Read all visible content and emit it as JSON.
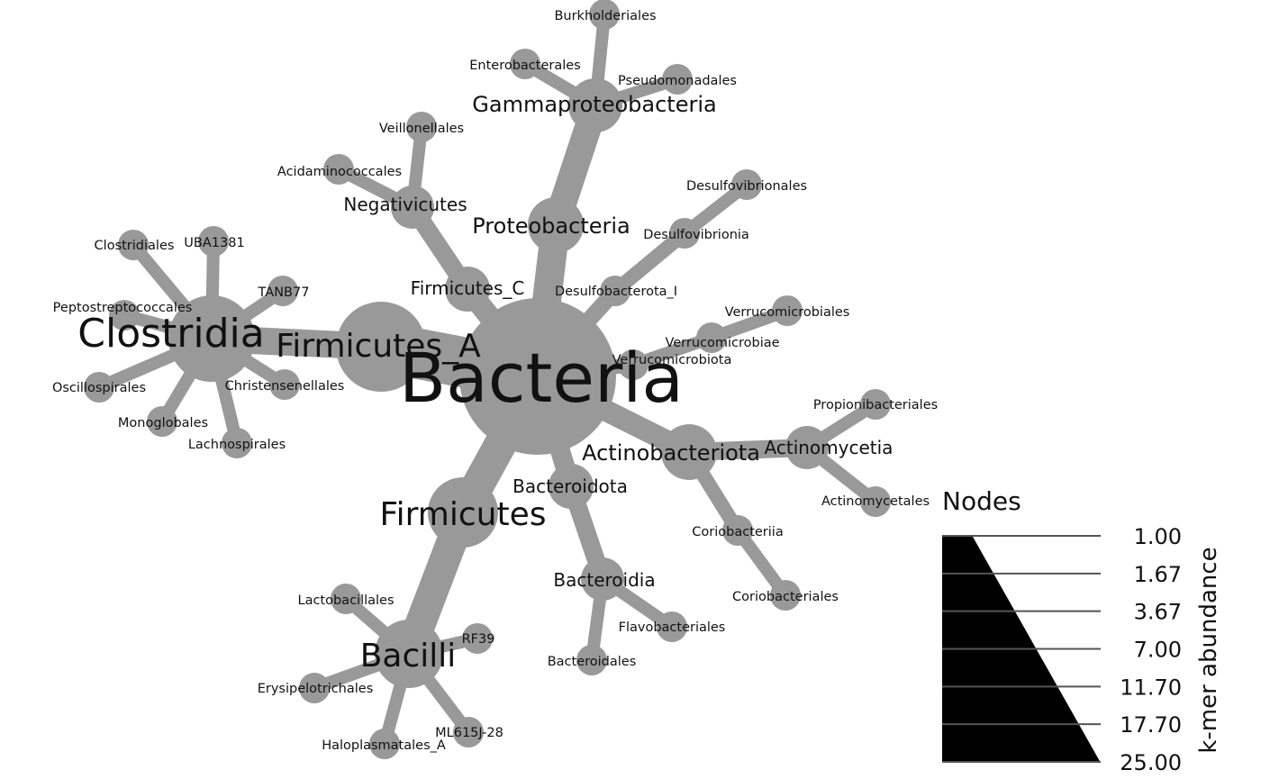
{
  "colors": {
    "node": "#999999",
    "edge": "#999999",
    "text": "#111111",
    "legend_fill": "#000000",
    "legend_tick": "#555555"
  },
  "tree": {
    "root": "Bacteria",
    "nodes": {
      "bacteria": {
        "label": "Bacteria",
        "parent": null
      },
      "firmicutes_a": {
        "label": "Firmicutes_A",
        "parent": "bacteria"
      },
      "clostridia": {
        "label": "Clostridia",
        "parent": "firmicutes_a"
      },
      "clostridiales": {
        "label": "Clostridiales",
        "parent": "clostridia"
      },
      "uba1381": {
        "label": "UBA1381",
        "parent": "clostridia"
      },
      "tanb77": {
        "label": "TANB77",
        "parent": "clostridia"
      },
      "peptostreptococcales": {
        "label": "Peptostreptococcales",
        "parent": "clostridia"
      },
      "oscillospirales": {
        "label": "Oscillospirales",
        "parent": "clostridia"
      },
      "monoglobales": {
        "label": "Monoglobales",
        "parent": "clostridia"
      },
      "lachnospirales": {
        "label": "Lachnospirales",
        "parent": "clostridia"
      },
      "christensenellales": {
        "label": "Christensenellales",
        "parent": "clostridia"
      },
      "firmicutes_c": {
        "label": "Firmicutes_C",
        "parent": "bacteria"
      },
      "negativicutes": {
        "label": "Negativicutes",
        "parent": "firmicutes_c"
      },
      "veillonellales": {
        "label": "Veillonellales",
        "parent": "negativicutes"
      },
      "acidaminococcales": {
        "label": "Acidaminococcales",
        "parent": "negativicutes"
      },
      "proteobacteria": {
        "label": "Proteobacteria",
        "parent": "bacteria"
      },
      "gammaproteobacteria": {
        "label": "Gammaproteobacteria",
        "parent": "proteobacteria"
      },
      "burkholderiales": {
        "label": "Burkholderiales",
        "parent": "gammaproteobacteria"
      },
      "enterobacterales": {
        "label": "Enterobacterales",
        "parent": "gammaproteobacteria"
      },
      "pseudomonadales": {
        "label": "Pseudomonadales",
        "parent": "gammaproteobacteria"
      },
      "desulfobacterota_i": {
        "label": "Desulfobacterota_I",
        "parent": "bacteria"
      },
      "desulfovibrionia": {
        "label": "Desulfovibrionia",
        "parent": "desulfobacterota_i"
      },
      "desulfovibrionales": {
        "label": "Desulfovibrionales",
        "parent": "desulfovibrionia"
      },
      "verrucomicrobiota": {
        "label": "Verrucomicrobiota",
        "parent": "bacteria"
      },
      "verrucomicrobiae": {
        "label": "Verrucomicrobiae",
        "parent": "verrucomicrobiota"
      },
      "verrucomicrobiales": {
        "label": "Verrucomicrobiales",
        "parent": "verrucomicrobiae"
      },
      "actinobacteriota": {
        "label": "Actinobacteriota",
        "parent": "bacteria"
      },
      "actinomycetia": {
        "label": "Actinomycetia",
        "parent": "actinobacteriota"
      },
      "propionibacteriales": {
        "label": "Propionibacteriales",
        "parent": "actinomycetia"
      },
      "actinomycetales": {
        "label": "Actinomycetales",
        "parent": "actinomycetia"
      },
      "coriobacteriia": {
        "label": "Coriobacteriia",
        "parent": "actinobacteriota"
      },
      "coriobacteriales": {
        "label": "Coriobacteriales",
        "parent": "coriobacteriia"
      },
      "bacteroidota": {
        "label": "Bacteroidota",
        "parent": "bacteria"
      },
      "bacteroidia": {
        "label": "Bacteroidia",
        "parent": "bacteroidota"
      },
      "flavobacteriales": {
        "label": "Flavobacteriales",
        "parent": "bacteroidia"
      },
      "bacteroidales": {
        "label": "Bacteroidales",
        "parent": "bacteroidia"
      },
      "firmicutes": {
        "label": "Firmicutes",
        "parent": "bacteria"
      },
      "bacilli": {
        "label": "Bacilli",
        "parent": "firmicutes"
      },
      "lactobacillales": {
        "label": "Lactobacillales",
        "parent": "bacilli"
      },
      "rf39": {
        "label": "RF39",
        "parent": "bacilli"
      },
      "erysipelotrichales": {
        "label": "Erysipelotrichales",
        "parent": "bacilli"
      },
      "haloplasmatales_a": {
        "label": "Haloplasmatales_A",
        "parent": "bacilli"
      },
      "ml615j_28": {
        "label": "ML615J-28",
        "parent": "bacilli"
      }
    }
  },
  "legend": {
    "title": "Nodes",
    "axis_label": "k-mer abundance",
    "ticks": [
      "1.00",
      "1.67",
      "3.67",
      "7.00",
      "11.70",
      "17.70",
      "25.00"
    ]
  }
}
